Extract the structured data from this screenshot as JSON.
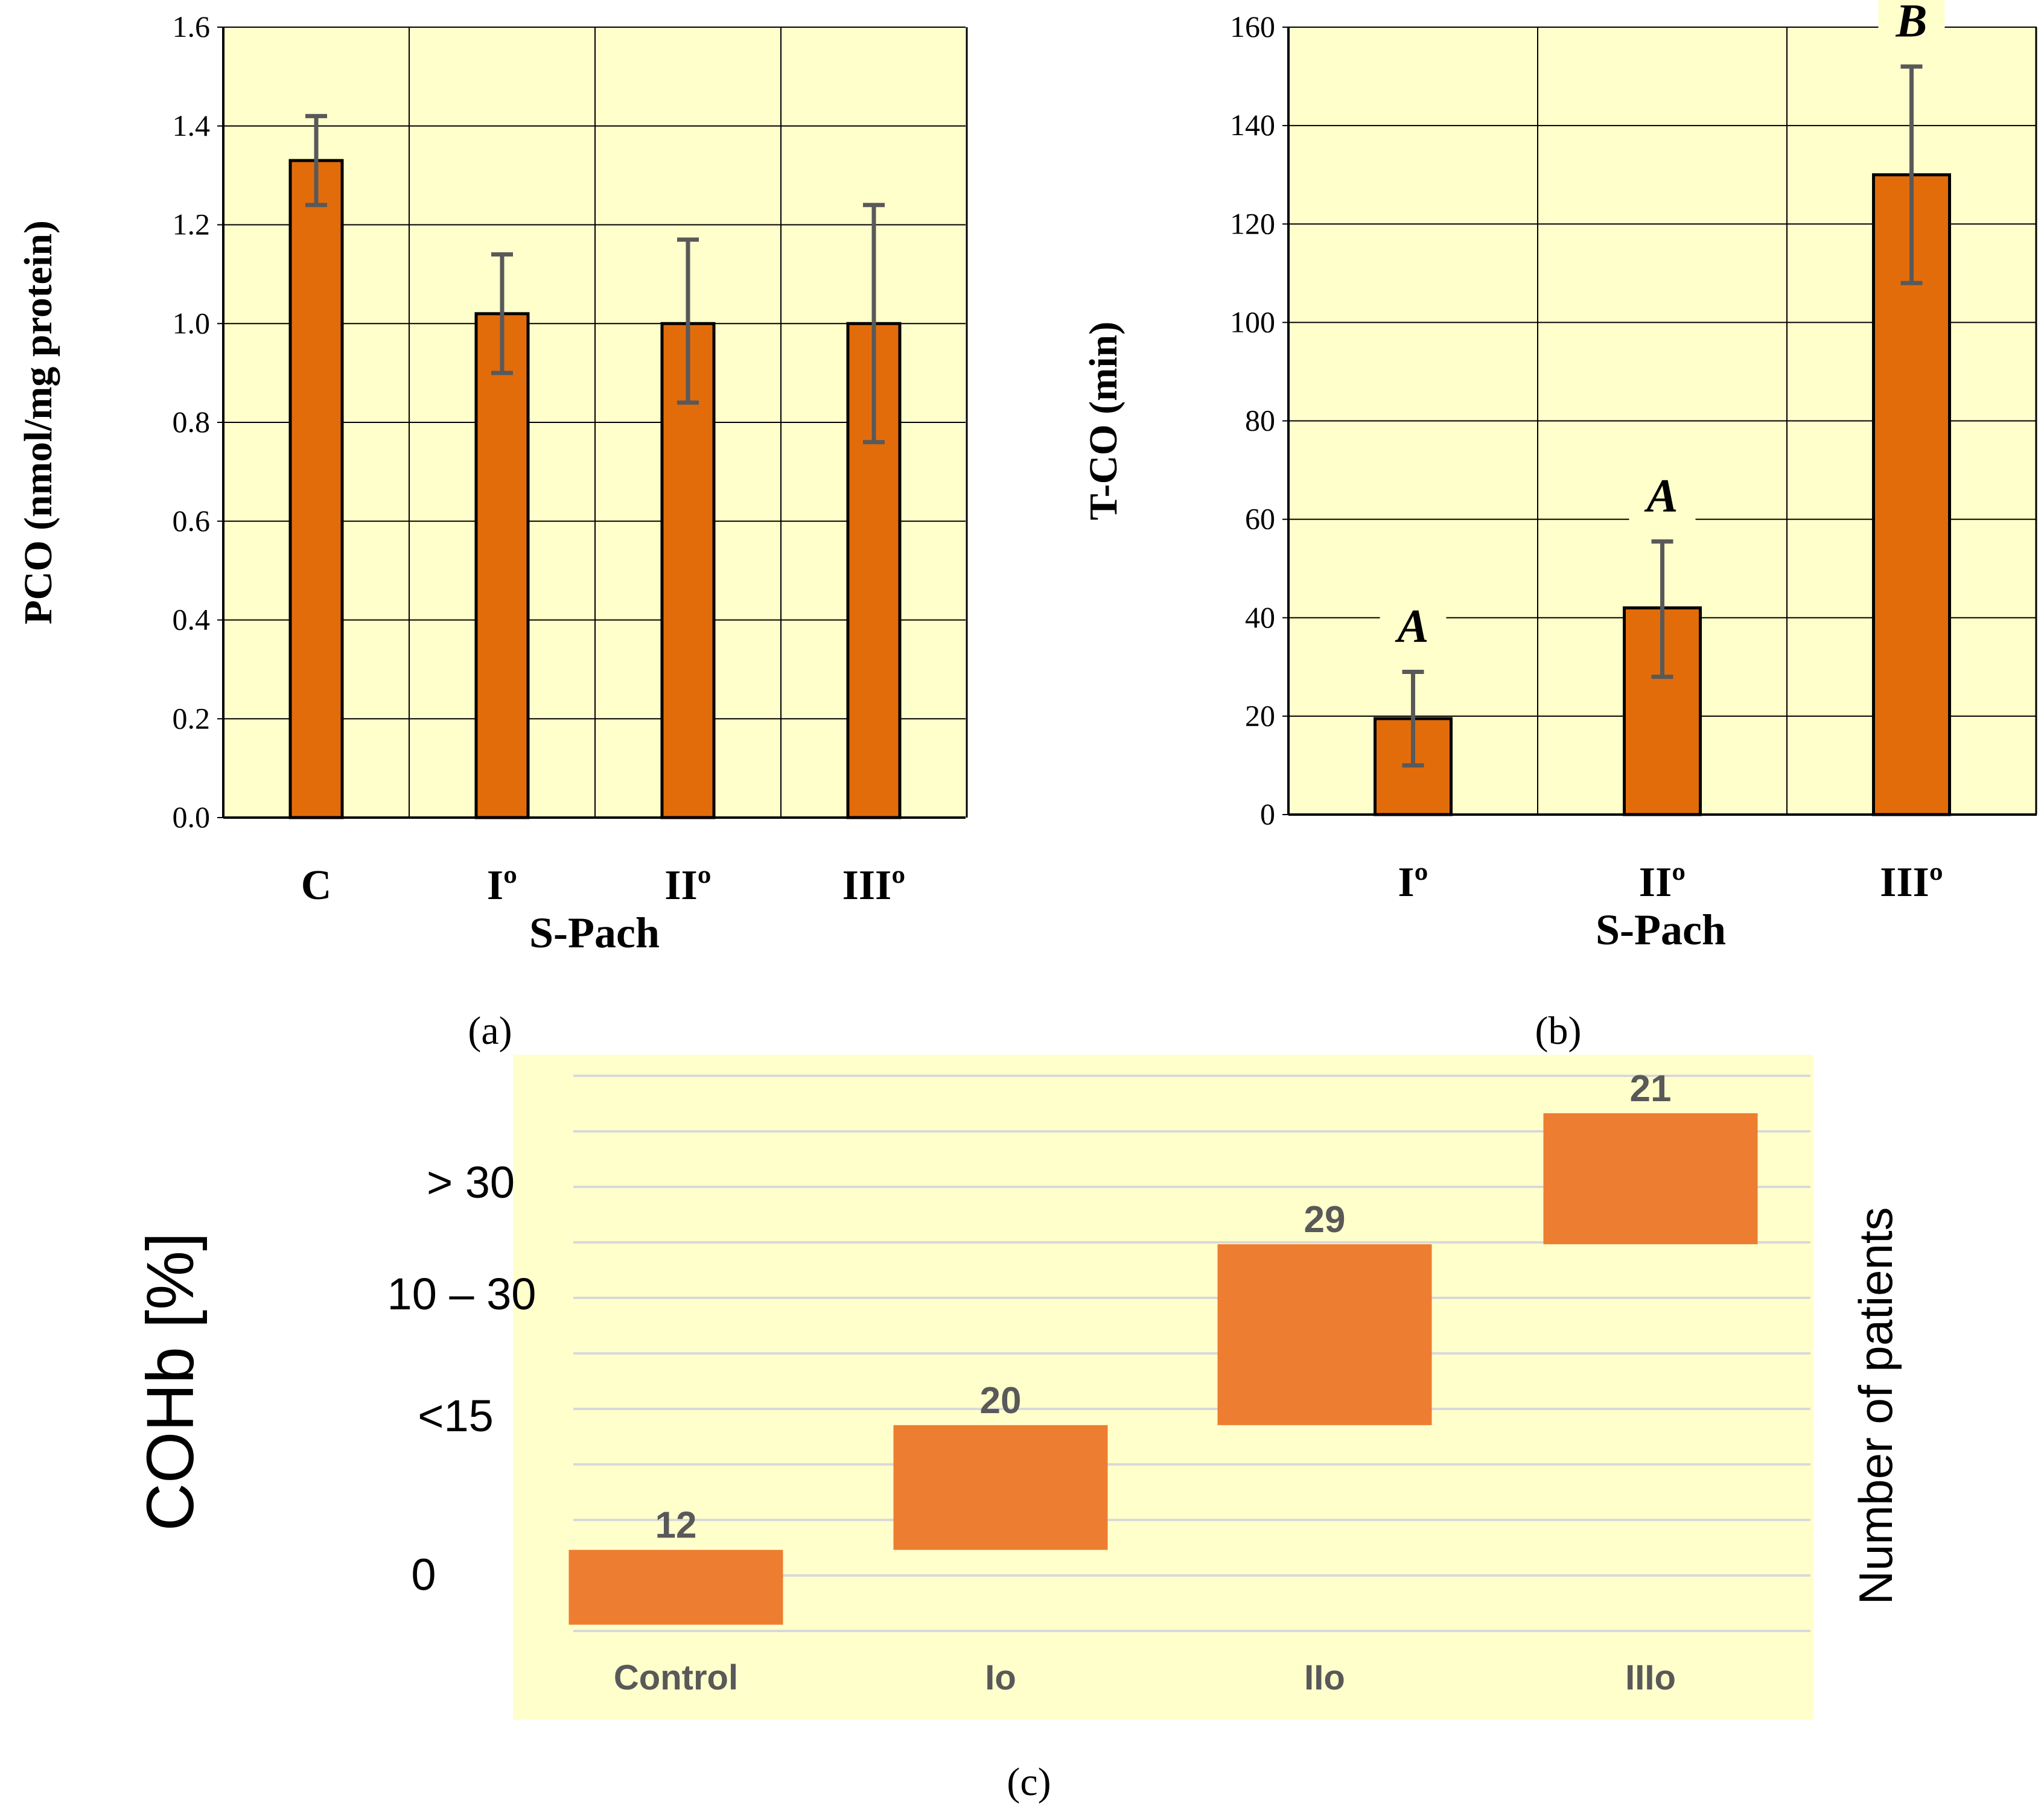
{
  "colors": {
    "plot_bg": "#FFFFCC",
    "bar_ab": "#E36C0A",
    "bar_c": "#ED7D31",
    "error_bar": "#595959",
    "grid_ab": "#000000",
    "grid_c": "#D9D9D9",
    "text": "#000000",
    "c_tick_text": "#595959"
  },
  "chart_data": [
    {
      "id": "a",
      "type": "bar",
      "panel_label": "(a)",
      "categories": [
        "C",
        "Iº",
        "IIº",
        "IIIº"
      ],
      "values": [
        1.33,
        1.02,
        1.0,
        1.0
      ],
      "errors_upper": [
        1.42,
        1.14,
        1.17,
        1.24
      ],
      "errors_lower": [
        1.24,
        0.9,
        0.84,
        0.76
      ],
      "ylim": [
        0,
        1.6
      ],
      "ytick_labels": [
        "0.0",
        "0.2",
        "0.4",
        "0.6",
        "0.8",
        "1.0",
        "1.2",
        "1.4",
        "1.6"
      ],
      "ylabel": "PCO (nmol/mg protein)",
      "xlabel": "S-Pach",
      "grid": true
    },
    {
      "id": "b",
      "type": "bar",
      "panel_label": "(b)",
      "categories": [
        "Iº",
        "IIº",
        "IIIº"
      ],
      "values": [
        19.5,
        42,
        130
      ],
      "errors_upper": [
        29,
        55.5,
        152
      ],
      "errors_lower": [
        10,
        28,
        108
      ],
      "significance_letters": [
        "A",
        "A",
        "B"
      ],
      "ylim": [
        0,
        160
      ],
      "ytick_labels": [
        "0",
        "20",
        "40",
        "60",
        "80",
        "100",
        "120",
        "140",
        "160"
      ],
      "ylabel": "T-CO (min)",
      "xlabel": "S-Pach",
      "grid": true
    },
    {
      "id": "c",
      "type": "bar",
      "subtype": "floating",
      "panel_label": "(c)",
      "categories": [
        "Control",
        "Io",
        "IIo",
        "IIIo"
      ],
      "ranges": [
        [
          0,
          12
        ],
        [
          12,
          32
        ],
        [
          32,
          61
        ],
        [
          61,
          82
        ]
      ],
      "labels": [
        "12",
        "20",
        "29",
        "21"
      ],
      "ylim": [
        -1,
        88
      ],
      "ycategory_labels": [
        "0",
        "<15",
        "10 – 30",
        "> 30"
      ],
      "ylabel": "COHb [%]",
      "y2label": "Number of patients",
      "grid": true
    }
  ]
}
